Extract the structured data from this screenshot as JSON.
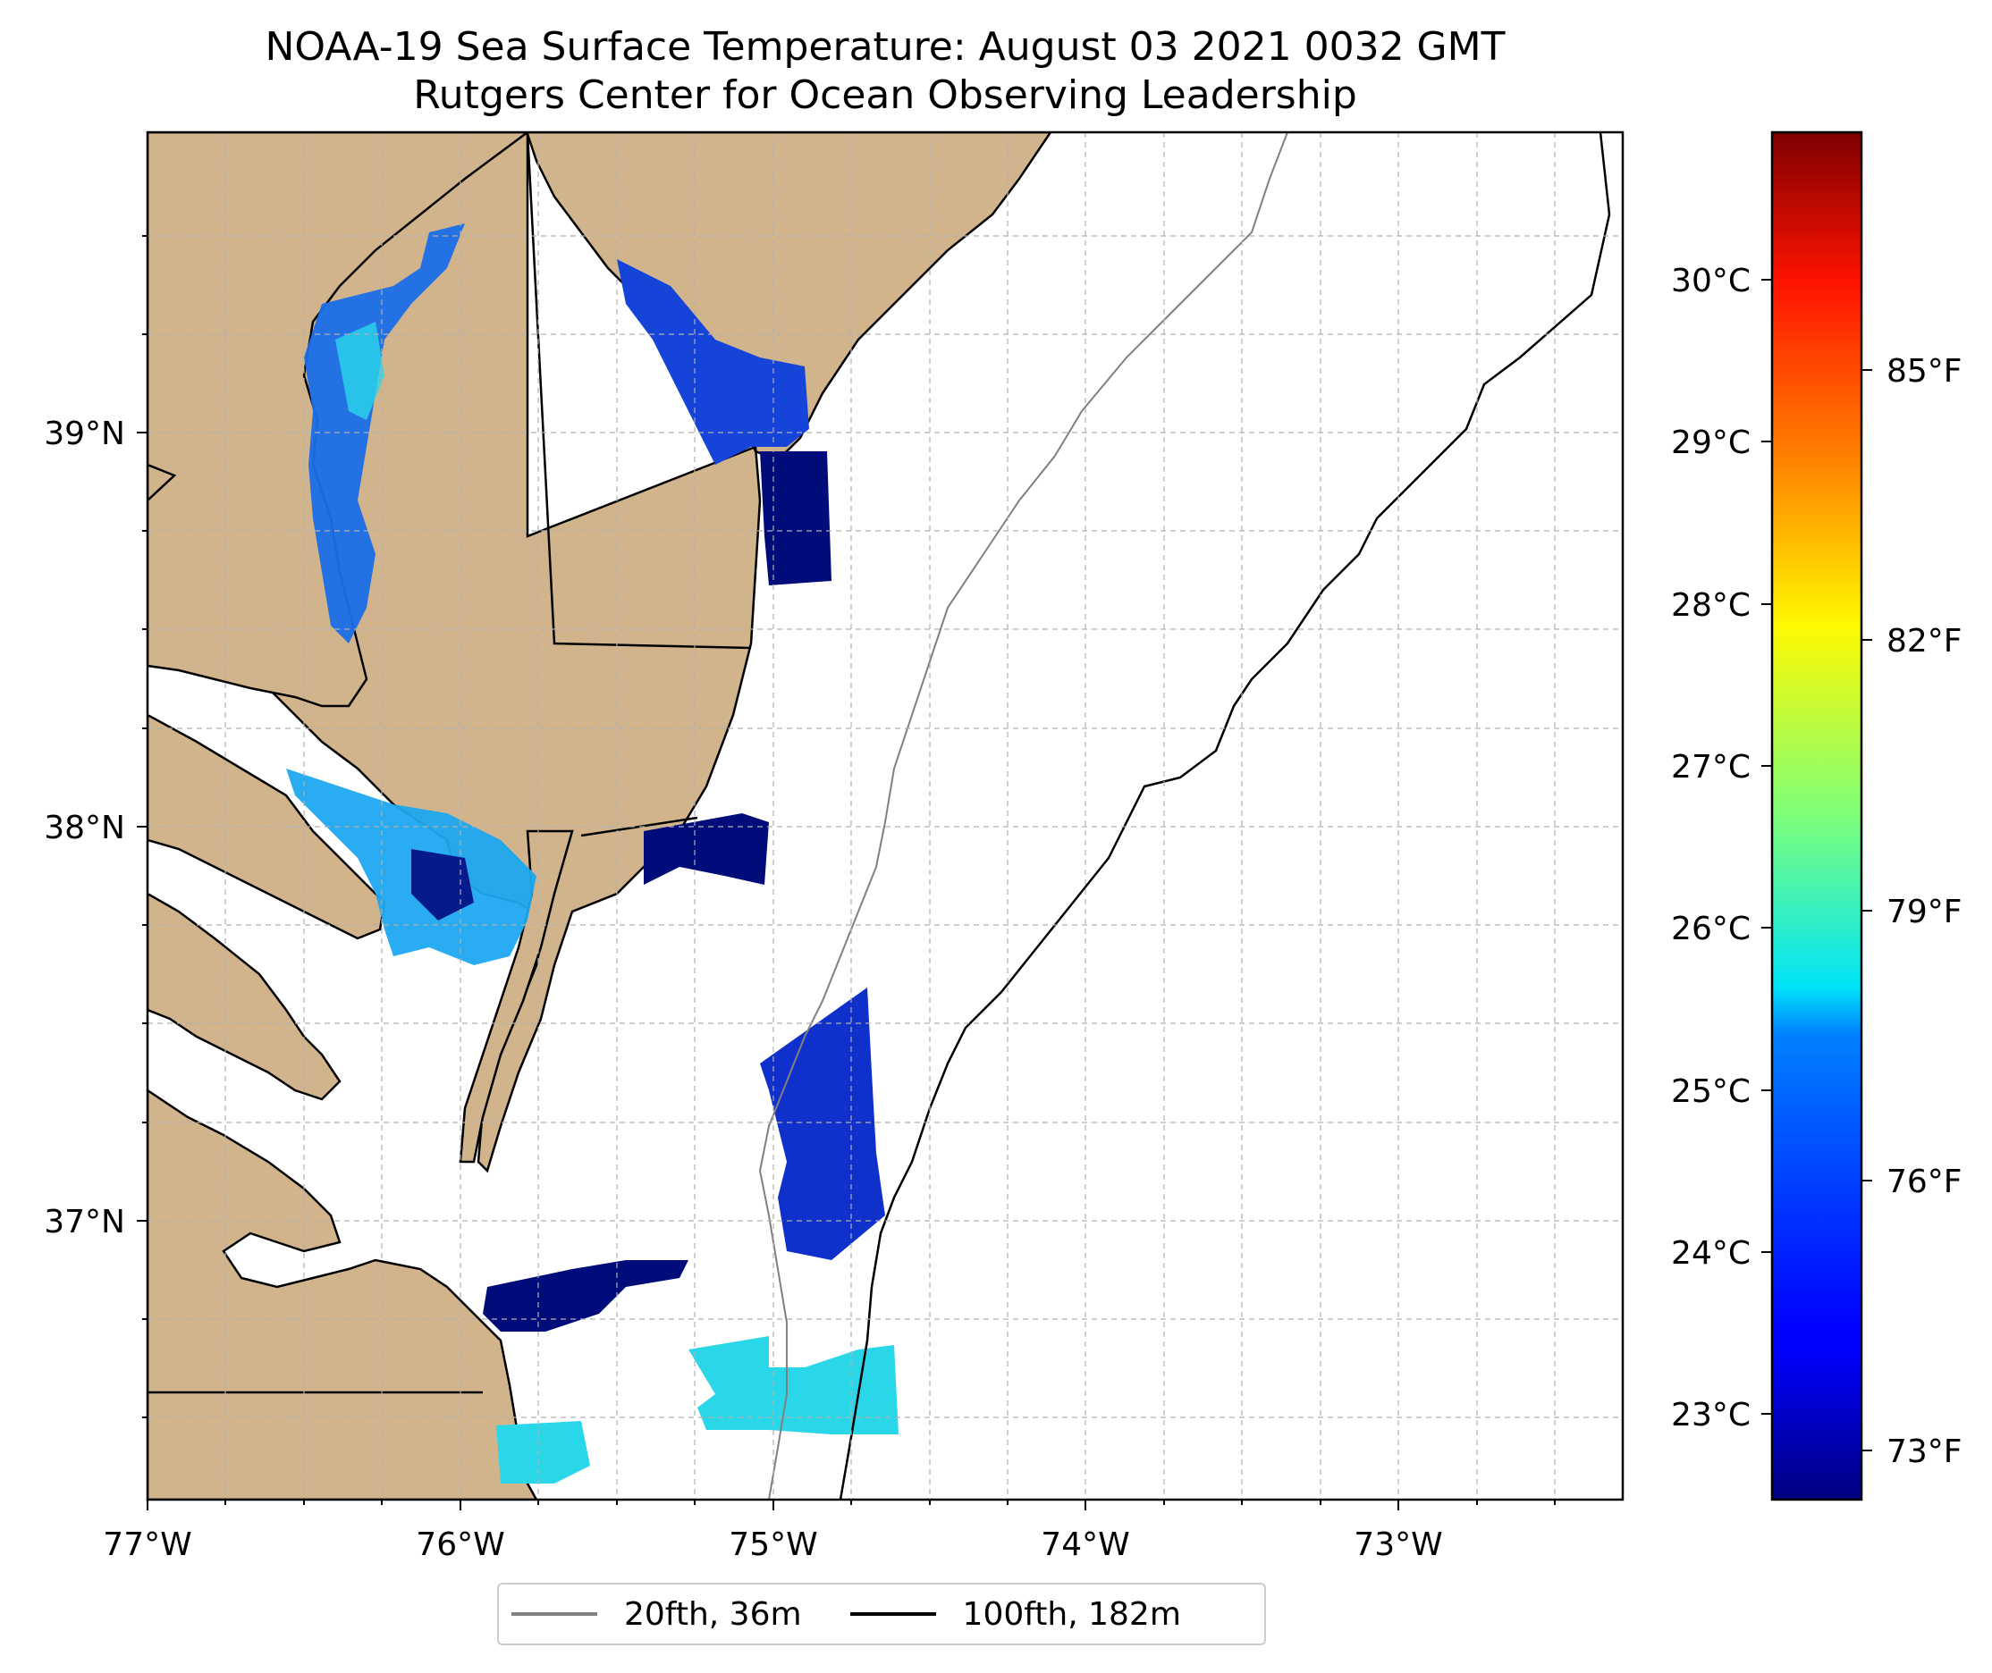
{
  "title": {
    "line1": "NOAA-19 Sea Surface Temperature: August 03 2021 0032 GMT",
    "line2": "Rutgers Center for Ocean Observing Leadership"
  },
  "map": {
    "lon_range": [
      -77.0,
      -72.28
    ],
    "lat_range": [
      36.28,
      39.8
    ],
    "lon_ticks": [
      {
        "value": -77,
        "label": "77°W"
      },
      {
        "value": -76,
        "label": "76°W"
      },
      {
        "value": -75,
        "label": "75°W"
      },
      {
        "value": -74,
        "label": "74°W"
      },
      {
        "value": -73,
        "label": "73°W"
      }
    ],
    "lat_ticks": [
      {
        "value": 39,
        "label": "39°N"
      },
      {
        "value": 38,
        "label": "38°N"
      },
      {
        "value": 37,
        "label": "37°N"
      }
    ],
    "gridlines": true,
    "land_color": "#d2b48c",
    "ocean_color": "#ffffff"
  },
  "colorbar": {
    "colormap": "jet",
    "celsius_range": [
      22.5,
      31.0
    ],
    "celsius_ticks": [
      {
        "value": 23,
        "label": "23°C"
      },
      {
        "value": 24,
        "label": "24°C"
      },
      {
        "value": 25,
        "label": "25°C"
      },
      {
        "value": 26,
        "label": "26°C"
      },
      {
        "value": 27,
        "label": "27°C"
      },
      {
        "value": 28,
        "label": "28°C"
      },
      {
        "value": 29,
        "label": "29°C"
      },
      {
        "value": 30,
        "label": "30°C"
      }
    ],
    "fahrenheit_ticks": [
      {
        "value": 73,
        "label": "73°F"
      },
      {
        "value": 76,
        "label": "76°F"
      },
      {
        "value": 79,
        "label": "79°F"
      },
      {
        "value": 82,
        "label": "82°F"
      },
      {
        "value": 85,
        "label": "85°F"
      }
    ]
  },
  "legend": {
    "placement": "bottom-center",
    "items": [
      {
        "label": "20fth, 36m",
        "color": "#808080"
      },
      {
        "label": "100fth, 182m",
        "color": "#000000"
      }
    ]
  }
}
